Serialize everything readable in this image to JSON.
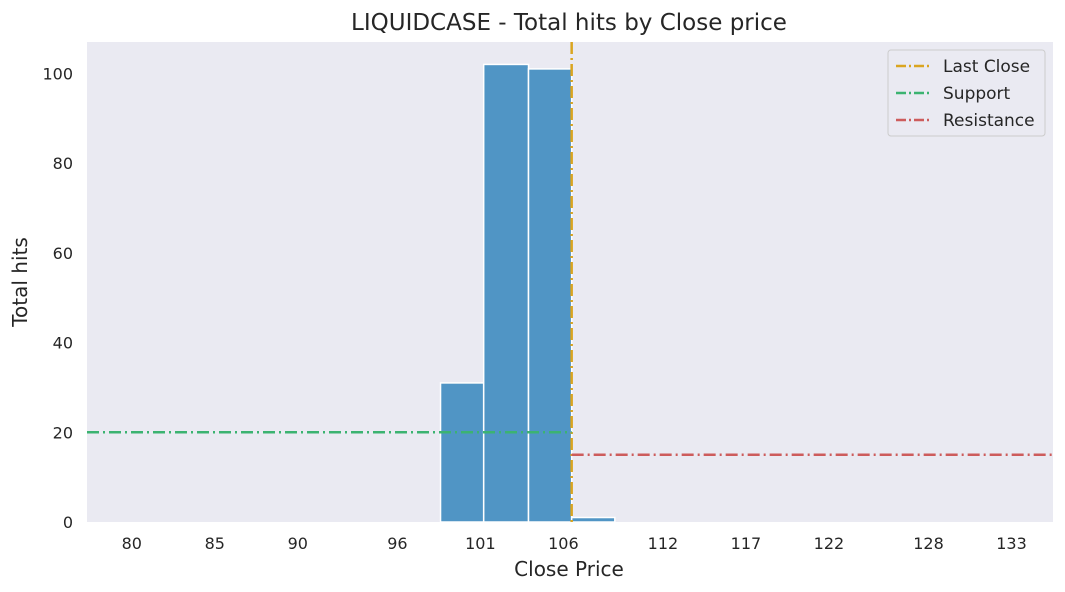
{
  "chart_data": {
    "type": "bar",
    "title": "LIQUIDCASE - Total hits by Close price",
    "xlabel": "Close Price",
    "ylabel": "Total hits",
    "xlim": [
      77.3,
      135.5
    ],
    "ylim": [
      0,
      107
    ],
    "grid": false,
    "background_color": "#eaeaf2",
    "bar_color": "#5095c5",
    "xticks": [
      80,
      85,
      90,
      96,
      101,
      106,
      112,
      117,
      122,
      128,
      133
    ],
    "yticks": [
      0,
      20,
      40,
      60,
      80,
      100
    ],
    "bins": [
      {
        "x0": 98.6,
        "x1": 101.2,
        "value": 31
      },
      {
        "x0": 101.2,
        "x1": 103.9,
        "value": 102
      },
      {
        "x0": 103.9,
        "x1": 106.5,
        "value": 101
      },
      {
        "x0": 106.5,
        "x1": 109.1,
        "value": 1
      }
    ],
    "lines": [
      {
        "name": "Last Close",
        "orientation": "vertical",
        "x": 106.5,
        "color": "#daa520"
      },
      {
        "name": "Support",
        "orientation": "horizontal",
        "y": 20,
        "x_from": 77.3,
        "x_to": 106.5,
        "color": "#3cb371"
      },
      {
        "name": "Resistance",
        "orientation": "horizontal",
        "y": 15,
        "x_from": 106.5,
        "x_to": 135.5,
        "color": "#cd5c5c"
      }
    ],
    "legend_position": "top-right",
    "legend": [
      "Last Close",
      "Support",
      "Resistance"
    ]
  }
}
